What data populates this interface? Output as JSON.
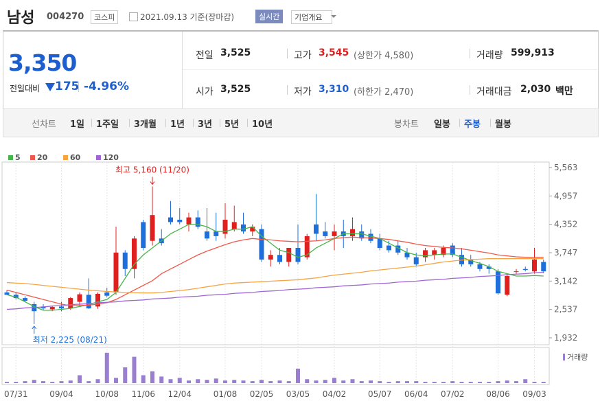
{
  "header": {
    "name": "남성",
    "code": "004270",
    "market": "코스피",
    "date": "2021.09.13 기준(장마감)",
    "realtime": "실시간",
    "company": "기업개요"
  },
  "summary": {
    "price": "3,350",
    "change_label": "전일대비",
    "change": "175",
    "change_pct": "-4.96%",
    "items": [
      {
        "label": "전일",
        "value": "3,525"
      },
      {
        "label": "고가",
        "value": "3,545",
        "note": "(상한가 4,580)",
        "color": "#e0201f"
      },
      {
        "label": "거래량",
        "value": "599,913"
      },
      {
        "label": "시가",
        "value": "3,525"
      },
      {
        "label": "저가",
        "value": "3,310",
        "note": "(하한가 2,470)",
        "color": "#1e5fcf"
      },
      {
        "label": "거래대금",
        "value": "2,030",
        "unit": "백만"
      }
    ]
  },
  "tabs": {
    "line": {
      "label": "선차트",
      "options": [
        "1일",
        "1주일",
        "3개월",
        "1년",
        "3년",
        "5년",
        "10년"
      ]
    },
    "candle": {
      "label": "봉차트",
      "options": [
        "일봉",
        "주봉",
        "월봉"
      ],
      "active": 1
    }
  },
  "chart_data": {
    "type": "candlestick",
    "categories": [
      null,
      "07/31",
      null,
      null,
      null,
      null,
      "09/04",
      null,
      null,
      null,
      null,
      "10/08",
      null,
      null,
      null,
      "11/06",
      null,
      null,
      null,
      "12/04",
      null,
      null,
      null,
      null,
      "01/08",
      null,
      null,
      null,
      "02/05",
      null,
      null,
      null,
      "03/05",
      null,
      null,
      null,
      "04/02",
      null,
      null,
      null,
      null,
      "05/07",
      null,
      null,
      null,
      "06/04",
      null,
      null,
      null,
      "07/02",
      null,
      null,
      null,
      null,
      "08/06",
      null,
      null,
      null,
      "09/03",
      null
    ],
    "open": [
      2900,
      2850,
      2780,
      2650,
      2600,
      2540,
      2600,
      2560,
      2700,
      2850,
      2600,
      2900,
      2900,
      3750,
      3400,
      4400,
      4000,
      4050,
      4500,
      4450,
      4350,
      4500,
      4200,
      4200,
      4150,
      4250,
      4350,
      4200,
      4250,
      3600,
      3700,
      3550,
      3850,
      3650,
      4350,
      4200,
      4100,
      4200,
      4100,
      4200,
      4150,
      4050,
      3900,
      3900,
      3750,
      3650,
      3650,
      3700,
      3700,
      3900,
      3700,
      3600,
      3500,
      3450,
      3350,
      2850,
      3350,
      3400,
      3350,
      3550
    ],
    "high": [
      2950,
      2900,
      2820,
      2700,
      2650,
      2620,
      2700,
      2800,
      2900,
      3200,
      2900,
      3000,
      4300,
      3800,
      4100,
      4450,
      5160,
      4250,
      4850,
      4700,
      4600,
      4650,
      4700,
      4600,
      4800,
      4750,
      4600,
      4350,
      4350,
      3800,
      3850,
      3850,
      4350,
      4150,
      5000,
      4400,
      4350,
      4450,
      4500,
      4350,
      4250,
      4150,
      4000,
      4000,
      3850,
      3750,
      3850,
      3850,
      3900,
      3950,
      3850,
      3700,
      3550,
      3500,
      3400,
      3300,
      3400,
      3450,
      3850,
      3600
    ],
    "low": [
      2850,
      2750,
      2700,
      2225,
      2520,
      2500,
      2500,
      2530,
      2600,
      2550,
      2550,
      2800,
      2850,
      3250,
      3200,
      3800,
      3900,
      3900,
      4350,
      4350,
      4200,
      4250,
      4000,
      4000,
      4050,
      4200,
      4150,
      4100,
      3550,
      3450,
      3500,
      3450,
      3500,
      3600,
      4000,
      4050,
      3800,
      3850,
      4000,
      4000,
      3950,
      3800,
      3750,
      3700,
      3600,
      3450,
      3550,
      3600,
      3650,
      3650,
      3450,
      3450,
      3350,
      3300,
      2850,
      2820,
      3300,
      3350,
      3300,
      3310
    ],
    "close": [
      2850,
      2780,
      2720,
      2500,
      2560,
      2590,
      2560,
      2780,
      2860,
      2560,
      2870,
      2830,
      3750,
      3400,
      4050,
      3850,
      4550,
      3950,
      4400,
      4400,
      4500,
      4300,
      4050,
      4100,
      4450,
      4400,
      4200,
      4300,
      3600,
      3700,
      3550,
      3850,
      3550,
      4100,
      4150,
      4100,
      4200,
      4100,
      4250,
      4050,
      4000,
      3850,
      3800,
      3750,
      3650,
      3500,
      3800,
      3800,
      3850,
      3700,
      3500,
      3500,
      3400,
      3400,
      2880,
      3250,
      3350,
      3380,
      3600,
      3350
    ],
    "volume": [
      2,
      2,
      3,
      5,
      3,
      2,
      3,
      4,
      12,
      3,
      6,
      46,
      8,
      24,
      40,
      12,
      18,
      10,
      6,
      8,
      4,
      6,
      5,
      7,
      4,
      5,
      4,
      3,
      5,
      3,
      4,
      3,
      22,
      6,
      4,
      5,
      8,
      4,
      6,
      3,
      4,
      3,
      2,
      3,
      3,
      3,
      2,
      2,
      2,
      3,
      2,
      2,
      2,
      2,
      3,
      4,
      3,
      6,
      2,
      2
    ],
    "volume_label": "거래량",
    "volume_color": "#9a7fd1",
    "volume_ylim": [
      0,
      50
    ],
    "up_color": "#e0201f",
    "down_color": "#1e6fd9",
    "series": [
      {
        "name": "5",
        "color": "#45b649",
        "values": [
          2850,
          2800,
          2700,
          2600,
          2520,
          2520,
          2540,
          2560,
          2600,
          2640,
          2700,
          2750,
          2900,
          3200,
          3500,
          3700,
          3850,
          4000,
          4150,
          4250,
          4350,
          4350,
          4300,
          4200,
          4200,
          4250,
          4250,
          4300,
          4100,
          3950,
          3800,
          3750,
          3650,
          3700,
          3850,
          3950,
          4050,
          4150,
          4150,
          4150,
          4100,
          4050,
          3950,
          3850,
          3750,
          3700,
          3680,
          3700,
          3720,
          3720,
          3650,
          3580,
          3520,
          3450,
          3350,
          3300,
          3250,
          3250,
          3260,
          3250
        ]
      },
      {
        "name": "20",
        "color": "#f0584a",
        "values": [
          2950,
          2900,
          2850,
          2800,
          2750,
          2700,
          2650,
          2620,
          2620,
          2630,
          2650,
          2680,
          2750,
          2850,
          2950,
          3050,
          3150,
          3300,
          3400,
          3500,
          3600,
          3700,
          3780,
          3850,
          3920,
          3980,
          4020,
          4050,
          4030,
          4020,
          4000,
          3990,
          3980,
          3990,
          4000,
          4020,
          4050,
          4070,
          4080,
          4070,
          4060,
          4050,
          4030,
          4000,
          3970,
          3930,
          3900,
          3880,
          3860,
          3850,
          3830,
          3800,
          3770,
          3740,
          3700,
          3680,
          3660,
          3650,
          3650,
          3650
        ]
      },
      {
        "name": "60",
        "color": "#f7a340",
        "values": [
          3110,
          3100,
          3090,
          3070,
          3050,
          3030,
          3010,
          2990,
          2970,
          2950,
          2935,
          2920,
          2910,
          2900,
          2895,
          2890,
          2890,
          2900,
          2920,
          2940,
          2960,
          2990,
          3020,
          3050,
          3080,
          3100,
          3110,
          3120,
          3130,
          3140,
          3150,
          3160,
          3170,
          3190,
          3210,
          3240,
          3270,
          3290,
          3310,
          3330,
          3360,
          3380,
          3400,
          3420,
          3440,
          3460,
          3490,
          3520,
          3550,
          3570,
          3590,
          3600,
          3610,
          3620,
          3620,
          3620,
          3620,
          3620,
          3620,
          3620
        ]
      },
      {
        "name": "120",
        "color": "#a066d3",
        "values": [
          2540,
          2550,
          2570,
          2580,
          2590,
          2610,
          2620,
          2640,
          2650,
          2660,
          2680,
          2690,
          2700,
          2720,
          2730,
          2740,
          2760,
          2770,
          2780,
          2800,
          2810,
          2820,
          2840,
          2850,
          2860,
          2880,
          2890,
          2900,
          2920,
          2930,
          2940,
          2960,
          2970,
          2980,
          3000,
          3010,
          3020,
          3040,
          3050,
          3060,
          3080,
          3090,
          3100,
          3120,
          3130,
          3140,
          3160,
          3170,
          3180,
          3200,
          3210,
          3220,
          3240,
          3250,
          3260,
          3280,
          3290,
          3300,
          3320,
          3330
        ]
      }
    ],
    "ylim": [
      1932,
      5563
    ],
    "yticks": [
      {
        "value": 1932,
        "label": "1,932"
      },
      {
        "value": 2537,
        "label": "2,537"
      },
      {
        "value": 3142,
        "label": "3,142"
      },
      {
        "value": 3747,
        "label": "3,747"
      },
      {
        "value": 4352,
        "label": "4,352"
      },
      {
        "value": 4957,
        "label": "4,957"
      },
      {
        "value": 5563,
        "label": "5,563"
      }
    ],
    "annotations": [
      {
        "text": "최고 5,160 (11/20)",
        "value": 5160,
        "color": "#e0201f"
      },
      {
        "text": "최저 2,225 (08/21)",
        "value": 2225,
        "color": "#1e6fd9"
      }
    ]
  }
}
